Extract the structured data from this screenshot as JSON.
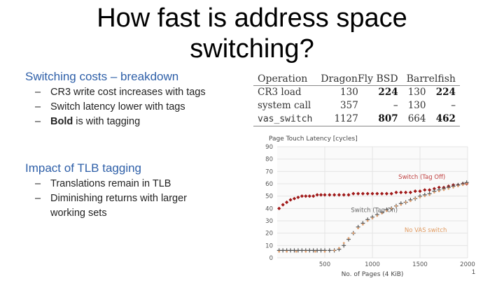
{
  "slide": {
    "title_line1": "How fast is address space",
    "title_line2": "switching?",
    "section1": {
      "heading": "Switching costs – breakdown",
      "bullets": [
        "CR3 write cost increases with tags",
        "Switch latency lower with tags",
        "is with tagging"
      ],
      "bold_word": "Bold"
    },
    "section2": {
      "heading": "Impact of TLB tagging",
      "bullets": [
        "Translations remain in TLB",
        "Diminishing returns with larger",
        "working sets"
      ]
    },
    "bullet_dash": "–",
    "page_number": "1"
  },
  "table": {
    "headers": [
      "Operation",
      "DragonFly BSD",
      "Barrelfish"
    ],
    "rows": [
      {
        "op": "CR3 load",
        "d1": "130",
        "d2": "224",
        "b1": "130",
        "b2": "224"
      },
      {
        "op": "system call",
        "d1": "357",
        "d2": "–",
        "b1": "130",
        "b2": "–"
      },
      {
        "op": "vas_switch",
        "d1": "1127",
        "d2": "807",
        "b1": "664",
        "b2": "462"
      }
    ]
  },
  "chart_data": {
    "type": "scatter",
    "title": "Page Touch Latency [cycles]",
    "xlabel": "No. of Pages (4 KiB)",
    "ylabel": "",
    "xlim": [
      0,
      2000
    ],
    "ylim": [
      0,
      90
    ],
    "xticks": [
      "500",
      "1000",
      "1500",
      "2000"
    ],
    "yticks": [
      "0",
      "10",
      "20",
      "30",
      "40",
      "50",
      "60",
      "70",
      "80",
      "90"
    ],
    "series": [
      {
        "name": "Switch (Tag Off)",
        "color": "#a01818",
        "marker": "diamond",
        "x": [
          20,
          60,
          100,
          140,
          180,
          220,
          260,
          300,
          340,
          380,
          420,
          460,
          500,
          550,
          600,
          650,
          700,
          750,
          800,
          850,
          900,
          950,
          1000,
          1050,
          1100,
          1150,
          1200,
          1250,
          1300,
          1350,
          1400,
          1450,
          1500,
          1550,
          1600,
          1650,
          1700,
          1750,
          1800,
          1850,
          1900,
          1950,
          1990
        ],
        "y": [
          40,
          43,
          45,
          47,
          48,
          49,
          50,
          50,
          50,
          50,
          51,
          51,
          51,
          51,
          51,
          51,
          51,
          51,
          52,
          52,
          52,
          52,
          52,
          52,
          52,
          52,
          52,
          53,
          53,
          53,
          53,
          54,
          54,
          55,
          55,
          56,
          57,
          57,
          58,
          59,
          59,
          60,
          60
        ]
      },
      {
        "name": "Switch (Tag On)",
        "color": "#555555",
        "marker": "plus",
        "x": [
          20,
          60,
          100,
          140,
          180,
          220,
          260,
          300,
          340,
          380,
          420,
          460,
          500,
          550,
          600,
          650,
          700,
          750,
          800,
          850,
          900,
          950,
          1000,
          1050,
          1100,
          1150,
          1200,
          1250,
          1300,
          1350,
          1400,
          1450,
          1500,
          1550,
          1600,
          1650,
          1700,
          1750,
          1800,
          1850,
          1900,
          1950,
          1990
        ],
        "y": [
          6,
          6,
          6,
          6,
          6,
          6,
          6,
          6,
          6,
          6,
          6,
          6,
          6,
          6,
          6,
          7,
          10,
          15,
          20,
          25,
          28,
          31,
          33,
          35,
          37,
          39,
          40,
          42,
          44,
          45,
          47,
          48,
          50,
          51,
          52,
          54,
          55,
          56,
          57,
          58,
          59,
          60,
          61
        ]
      },
      {
        "name": "No VAS switch",
        "color": "#e0a070",
        "marker": "dot",
        "x": [
          20,
          100,
          200,
          300,
          400,
          500,
          600,
          650,
          700,
          750,
          800,
          850,
          900,
          950,
          1000,
          1050,
          1100,
          1150,
          1200,
          1250,
          1300,
          1350,
          1400,
          1450,
          1500,
          1550,
          1600,
          1650,
          1700,
          1750,
          1800,
          1850,
          1900,
          1950,
          1990
        ],
        "y": [
          5,
          5,
          5,
          5,
          5,
          5,
          6,
          8,
          12,
          16,
          20,
          24,
          27,
          30,
          32,
          34,
          36,
          38,
          40,
          42,
          43,
          45,
          46,
          48,
          49,
          50,
          51,
          53,
          54,
          55,
          56,
          57,
          58,
          59,
          60
        ]
      }
    ],
    "annotations": [
      "Switch (Tag Off)",
      "Switch (Tag On)",
      "No VAS switch"
    ]
  }
}
